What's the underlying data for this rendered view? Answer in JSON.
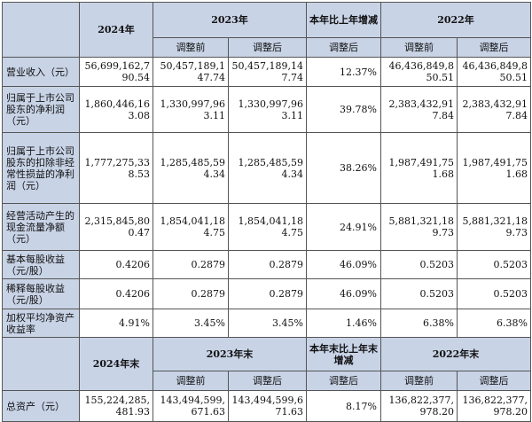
{
  "header": {
    "year_2024": "2024年",
    "year_2023": "2023年",
    "change": "本年比上年增减",
    "year_2022": "2022年",
    "before_adj": "调整前",
    "after_adj": "调整后"
  },
  "rows": [
    {
      "label": "营业收入（元）",
      "v2024": "56,699,162,790.54",
      "v2023_before": "50,457,189,147.74",
      "v2023_after": "50,457,189,147.74",
      "change": "12.37%",
      "v2022_before": "46,436,849,850.51",
      "v2022_after": "46,436,849,850.51"
    },
    {
      "label": "归属于上市公司股东的净利润（元）",
      "v2024": "1,860,446,163.08",
      "v2023_before": "1,330,997,963.11",
      "v2023_after": "1,330,997,963.11",
      "change": "39.78%",
      "v2022_before": "2,383,432,917.84",
      "v2022_after": "2,383,432,917.84"
    },
    {
      "label": "归属于上市公司股东的扣除非经常性损益的净利润（元）",
      "v2024": "1,777,275,338.53",
      "v2023_before": "1,285,485,594.34",
      "v2023_after": "1,285,485,594.34",
      "change": "38.26%",
      "v2022_before": "1,987,491,751.68",
      "v2022_after": "1,987,491,751.68"
    },
    {
      "label": "经营活动产生的现金流量净额（元）",
      "v2024": "2,315,845,800.47",
      "v2023_before": "1,854,041,184.75",
      "v2023_after": "1,854,041,184.75",
      "change": "24.91%",
      "v2022_before": "5,881,321,189.73",
      "v2022_after": "5,881,321,189.73"
    },
    {
      "label": "基本每股收益（元/股）",
      "v2024": "0.4206",
      "v2023_before": "0.2879",
      "v2023_after": "0.2879",
      "change": "46.09%",
      "v2022_before": "0.5203",
      "v2022_after": "0.5203"
    },
    {
      "label": "稀释每股收益（元/股）",
      "v2024": "0.4206",
      "v2023_before": "0.2879",
      "v2023_after": "0.2879",
      "change": "46.09%",
      "v2022_before": "0.5203",
      "v2022_after": "0.5203"
    },
    {
      "label": "加权平均净资产收益率",
      "v2024": "4.91%",
      "v2023_before": "3.45%",
      "v2023_after": "3.45%",
      "change": "1.46%",
      "v2022_before": "6.38%",
      "v2022_after": "6.38%"
    }
  ],
  "header2": {
    "year_2024_end": "2024年末",
    "year_2023_end": "2023年末",
    "change": "本年末比上年末增减",
    "year_2022_end": "2022年末",
    "before_adj": "调整前",
    "after_adj": "调整后"
  },
  "rows2": [
    {
      "label": "总资产（元）",
      "v2024": "155,224,285,481.93",
      "v2023_before": "143,494,599,671.63",
      "v2023_after": "143,494,599,671.63",
      "change": "8.17%",
      "v2022_before": "136,822,377,978.20",
      "v2022_after": "136,822,377,978.20"
    }
  ]
}
